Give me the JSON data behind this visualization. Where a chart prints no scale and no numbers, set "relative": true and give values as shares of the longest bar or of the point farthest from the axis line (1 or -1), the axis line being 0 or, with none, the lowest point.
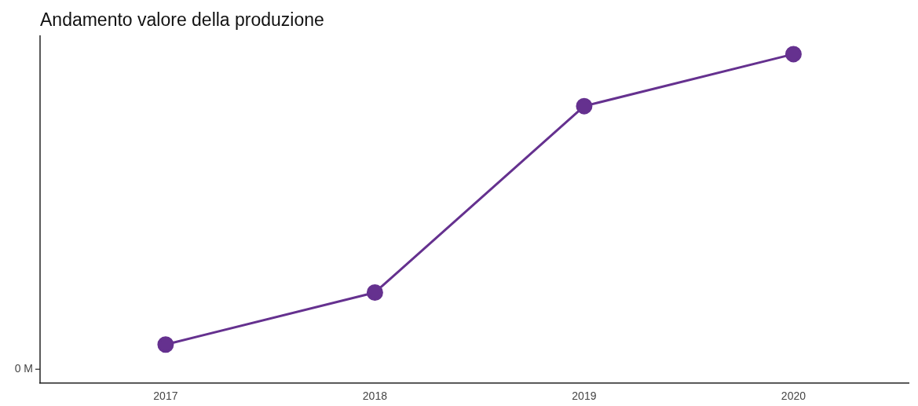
{
  "chart_data": {
    "type": "line",
    "title": "Andamento valore della produzione",
    "categories": [
      "2017",
      "2018",
      "2019",
      "2020"
    ],
    "relative": true,
    "series": [
      {
        "color": "#65318f",
        "values": [
          0.118,
          0.276,
          0.842,
          1
        ]
      }
    ],
    "marker": "circle",
    "line_style": "solid",
    "grid": false,
    "legend": false,
    "annotations": [
      "0 M"
    ]
  }
}
